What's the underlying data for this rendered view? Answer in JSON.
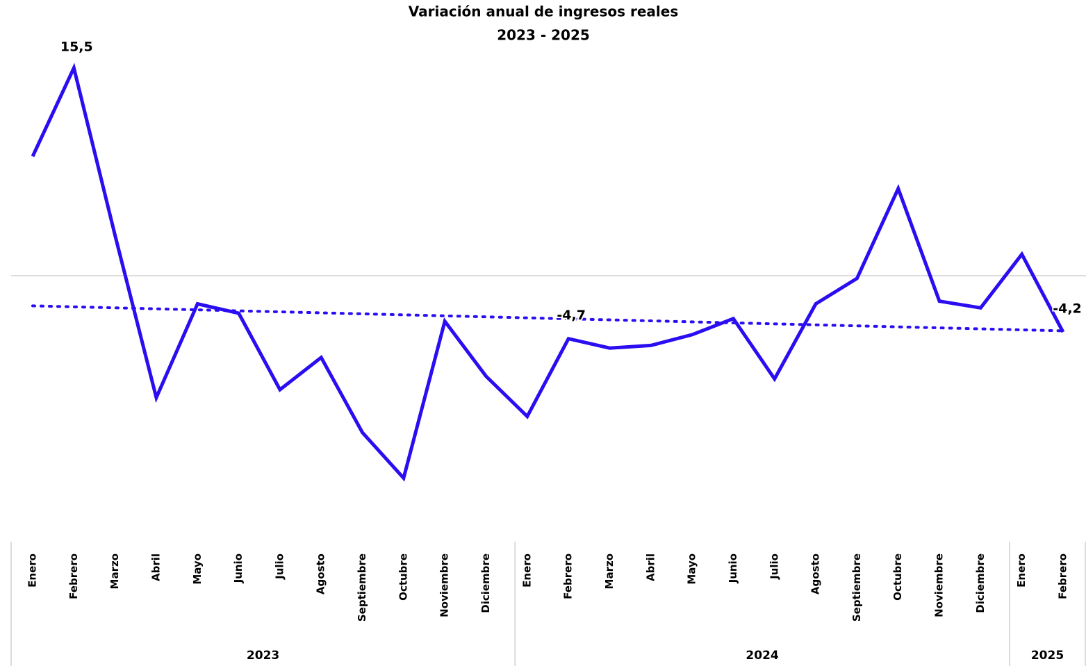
{
  "chart_data": {
    "type": "line",
    "title": "Variación anual de ingresos reales",
    "subtitle": "2023 - 2025",
    "categories": [
      "Enero",
      "Febrero",
      "Marzo",
      "Abril",
      "Mayo",
      "Junio",
      "Julio",
      "Agosto",
      "Septiembre",
      "Octubre",
      "Noviembre",
      "Diciembre",
      "Enero",
      "Febrero",
      "Marzo",
      "Abril",
      "Mayo",
      "Junio",
      "Julio",
      "Agosto",
      "Septiembre",
      "Octubre",
      "Noviembre",
      "Diciembre",
      "Enero",
      "Febrero"
    ],
    "groups": [
      {
        "label": "2023",
        "count": 12
      },
      {
        "label": "2024",
        "count": 12
      },
      {
        "label": "2025",
        "count": 2
      }
    ],
    "series": [
      {
        "name": "Variación anual",
        "color": "#2a0df0",
        "values": [
          8.9,
          15.5,
          3.0,
          -9.1,
          -2.1,
          -2.8,
          -8.5,
          -6.1,
          -11.7,
          -15.1,
          -3.4,
          -7.5,
          -10.5,
          -4.7,
          -5.4,
          -5.2,
          -4.4,
          -3.2,
          -7.7,
          -2.1,
          -0.2,
          6.5,
          -1.9,
          -2.4,
          1.6,
          -4.2
        ],
        "value_labels": [
          null,
          "15,5",
          null,
          null,
          null,
          null,
          null,
          null,
          null,
          null,
          null,
          null,
          null,
          "-4,7",
          null,
          null,
          null,
          null,
          null,
          null,
          null,
          null,
          null,
          null,
          null,
          "-4,2"
        ]
      }
    ],
    "ylim": [
      -20,
      20
    ],
    "trendline": true
  }
}
